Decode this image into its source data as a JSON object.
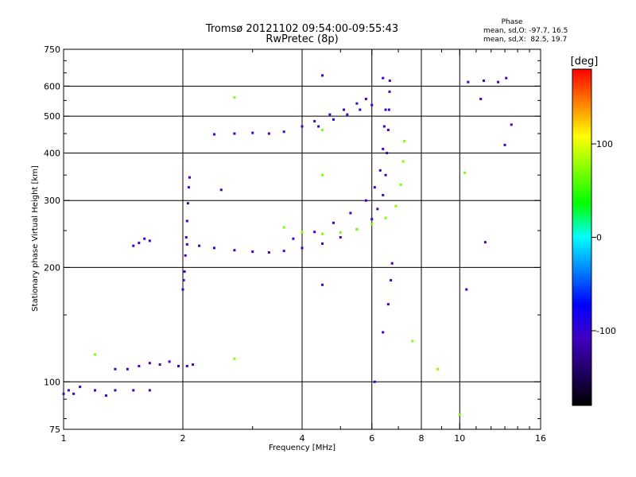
{
  "chart_data": {
    "type": "scatter",
    "title": "Tromsø 20121102 09:54:00-09:55:43",
    "subtitle": "RwPretec (8p)",
    "xlabel": "Frequency [MHz]",
    "ylabel": "Stationary phase Virtual Height [km]",
    "x_scale": "log",
    "y_scale": "log",
    "xlim": [
      1,
      16
    ],
    "ylim": [
      75,
      750
    ],
    "x_ticks": [
      1,
      2,
      4,
      6,
      8,
      10,
      16
    ],
    "x_tick_labels": [
      "1",
      "2",
      "4",
      "6",
      "8",
      "10",
      "16"
    ],
    "x_minor_ticks": [
      3,
      5,
      7,
      9,
      11,
      12,
      13,
      14,
      15
    ],
    "y_ticks": [
      75,
      100,
      200,
      300,
      400,
      500,
      600,
      750
    ],
    "y_tick_labels": [
      "75",
      "100",
      "200",
      "300",
      "400",
      "500",
      "600",
      "750"
    ],
    "y_minor_ticks": [
      80,
      90,
      150,
      250,
      350,
      450,
      550,
      650,
      700
    ],
    "x_gridlines": [
      2,
      4,
      6,
      8,
      10
    ],
    "y_gridlines": [
      100,
      200,
      300,
      400,
      500,
      600
    ],
    "grid": true,
    "stats": {
      "heading": "Phase",
      "line_o": "mean, sd,O: -97.7, 16.5",
      "line_x": "mean, sd,X:  82.5, 19.7"
    },
    "colorbar": {
      "label": "[deg]",
      "range": [
        -180,
        180
      ],
      "ticks": [
        100,
        0,
        -100
      ],
      "tick_labels": [
        "100",
        "0",
        "-100"
      ],
      "colors": [
        "#ff0000",
        "#ff8000",
        "#ffff00",
        "#80ff00",
        "#00ff00",
        "#00ffff",
        "#0080ff",
        "#0000ff",
        "#4000c0",
        "#200060",
        "#000000"
      ]
    },
    "traces": [
      {
        "name": "",
        "phase": -100,
        "points": [
          [
            1.0,
            93
          ],
          [
            1.03,
            95
          ],
          [
            1.06,
            93
          ],
          [
            1.1,
            97
          ],
          [
            1.2,
            95
          ],
          [
            1.28,
            92
          ],
          [
            1.35,
            95
          ],
          [
            1.5,
            95
          ],
          [
            1.65,
            95
          ]
        ]
      },
      {
        "name": "",
        "phase": -100,
        "points": [
          [
            1.35,
            108
          ],
          [
            1.45,
            108
          ],
          [
            1.55,
            110
          ],
          [
            1.65,
            112
          ],
          [
            1.75,
            111
          ],
          [
            1.85,
            113
          ],
          [
            1.95,
            110
          ],
          [
            2.05,
            110
          ],
          [
            2.12,
            111
          ]
        ]
      },
      {
        "name": "",
        "phase": -100,
        "points": [
          [
            1.5,
            228
          ],
          [
            1.55,
            232
          ],
          [
            1.6,
            238
          ],
          [
            1.65,
            235
          ]
        ]
      },
      {
        "name": "",
        "phase": -100,
        "points": [
          [
            2.0,
            175
          ],
          [
            2.01,
            185
          ],
          [
            2.02,
            195
          ],
          [
            2.03,
            215
          ],
          [
            2.04,
            240
          ],
          [
            2.05,
            265
          ],
          [
            2.06,
            295
          ],
          [
            2.07,
            325
          ],
          [
            2.08,
            345
          ]
        ]
      },
      {
        "name": "",
        "phase": -110,
        "points": [
          [
            2.05,
            230
          ],
          [
            2.2,
            228
          ],
          [
            2.4,
            225
          ],
          [
            2.7,
            222
          ],
          [
            3.0,
            220
          ],
          [
            3.3,
            219
          ],
          [
            3.6,
            221
          ],
          [
            4.0,
            225
          ],
          [
            4.5,
            231
          ],
          [
            5.0,
            240
          ],
          [
            5.5,
            252
          ],
          [
            6.0,
            268
          ],
          [
            6.2,
            285
          ],
          [
            6.4,
            310
          ],
          [
            6.5,
            350
          ],
          [
            6.55,
            400
          ],
          [
            6.6,
            460
          ],
          [
            6.63,
            520
          ],
          [
            6.65,
            580
          ],
          [
            6.66,
            620
          ]
        ]
      },
      {
        "name": "",
        "phase": -110,
        "points": [
          [
            3.8,
            238
          ],
          [
            4.3,
            248
          ],
          [
            4.8,
            262
          ],
          [
            5.3,
            278
          ],
          [
            5.8,
            300
          ],
          [
            6.1,
            325
          ],
          [
            6.3,
            360
          ],
          [
            6.4,
            410
          ],
          [
            6.45,
            470
          ],
          [
            6.5,
            520
          ]
        ]
      },
      {
        "name": "",
        "phase": 80,
        "points": [
          [
            3.6,
            255
          ],
          [
            4.0,
            248
          ],
          [
            4.5,
            245
          ],
          [
            5.0,
            247
          ],
          [
            5.5,
            252
          ],
          [
            6.0,
            260
          ],
          [
            6.5,
            270
          ],
          [
            6.9,
            290
          ],
          [
            7.1,
            330
          ],
          [
            7.2,
            380
          ],
          [
            7.25,
            430
          ]
        ]
      },
      {
        "name": "",
        "phase": -110,
        "points": [
          [
            2.4,
            448
          ],
          [
            2.7,
            450
          ],
          [
            3.0,
            452
          ],
          [
            3.3,
            450
          ],
          [
            3.6,
            455
          ],
          [
            4.0,
            470
          ],
          [
            4.3,
            485
          ],
          [
            4.7,
            505
          ],
          [
            5.1,
            520
          ],
          [
            5.5,
            540
          ],
          [
            5.8,
            555
          ]
        ]
      },
      {
        "name": "",
        "phase": -100,
        "points": [
          [
            4.4,
            470
          ],
          [
            4.8,
            490
          ],
          [
            5.2,
            505
          ],
          [
            5.6,
            520
          ],
          [
            6.0,
            535
          ]
        ]
      },
      {
        "name": "",
        "phase": -100,
        "points": [
          [
            4.5,
            640
          ],
          [
            6.4,
            630
          ],
          [
            10.5,
            615
          ],
          [
            11.5,
            620
          ],
          [
            12.5,
            615
          ],
          [
            13.1,
            630
          ]
        ]
      },
      {
        "name": "",
        "phase": -100,
        "points": [
          [
            6.1,
            100
          ],
          [
            6.4,
            135
          ],
          [
            6.6,
            160
          ],
          [
            6.7,
            185
          ],
          [
            6.75,
            205
          ]
        ]
      },
      {
        "name": "",
        "phase": 90,
        "points": [
          [
            2.7,
            560
          ],
          [
            4.5,
            350
          ],
          [
            4.5,
            460
          ],
          [
            10.3,
            355
          ],
          [
            10.0,
            82
          ],
          [
            8.8,
            108
          ],
          [
            2.7,
            115
          ],
          [
            1.2,
            118
          ],
          [
            7.6,
            128
          ]
        ]
      },
      {
        "name": "",
        "phase": -100,
        "points": [
          [
            4.5,
            180
          ],
          [
            10.4,
            175
          ],
          [
            11.3,
            555
          ],
          [
            13.5,
            475
          ],
          [
            13.0,
            420
          ],
          [
            11.6,
            233
          ],
          [
            2.5,
            320
          ]
        ]
      }
    ]
  }
}
